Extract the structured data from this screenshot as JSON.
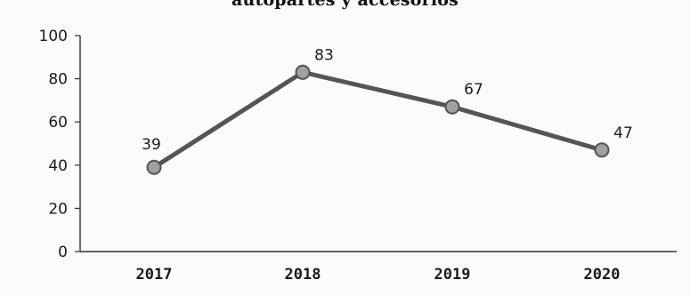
{
  "chart_data": {
    "type": "line",
    "title": "autopartes y accesorios",
    "xlabel": "",
    "ylabel": "",
    "categories": [
      "2017",
      "2018",
      "2019",
      "2020"
    ],
    "series": [
      {
        "values": [
          39,
          83,
          67,
          47
        ]
      }
    ],
    "data_labels": [
      "39",
      "83",
      "67",
      "47"
    ],
    "ylim": [
      0,
      100
    ],
    "yticks": [
      "0",
      "20",
      "40",
      "60",
      "80",
      "100"
    ],
    "grid": false,
    "legend": "none",
    "colors": {
      "line": "#555555",
      "marker_fill": "#a0a0a0",
      "marker_stroke": "#555555",
      "axis": "#333333"
    }
  }
}
